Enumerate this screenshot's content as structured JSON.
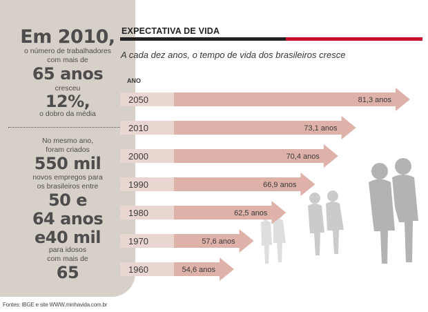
{
  "sidebar": {
    "headline": "Em 2010,",
    "line1": "o número de trabalhadores",
    "line2": "com mais de",
    "age1": "65 anos",
    "line3": "cresceu",
    "percent": "12%,",
    "line4": "o dobro da média",
    "line5": "No mesmo ano,",
    "line6": "foram criados",
    "jobs": "550 mil",
    "line7": "novos empregos para",
    "line8": "os brasileiros entre",
    "age_range1": "50 e",
    "age_range2": "64 anos",
    "and40": "e40 mil",
    "line9": "para idosos",
    "line10": "com mais de",
    "age2": "65"
  },
  "source": "Fontes: IBGE e site WWW.minhavida.com.br",
  "colors": {
    "arrow_fill": "#deb1a9",
    "arrow_dark": "#bf8478",
    "year_band": "#ead6d1",
    "sidebar_bg": "#d7d0c8",
    "accent_red": "#c8102e"
  },
  "chart_data": {
    "type": "bar",
    "title": "EXPECTATIVA DE VIDA",
    "subtitle": "A cada dez anos, o tempo de vida dos brasileiros cresce",
    "year_header": "ANO",
    "categories": [
      "2050",
      "2010",
      "2000",
      "1990",
      "1980",
      "1970",
      "1960"
    ],
    "values": [
      81.3,
      73.1,
      70.4,
      66.9,
      62.5,
      57.6,
      54.6
    ],
    "value_labels": [
      "81,3 anos",
      "73,1 anos",
      "70,4 anos",
      "66,9 anos",
      "62,5 anos",
      "57,6 anos",
      "54,6 anos"
    ],
    "orientation": "horizontal",
    "illustration": "elderly-couples-silhouette"
  }
}
